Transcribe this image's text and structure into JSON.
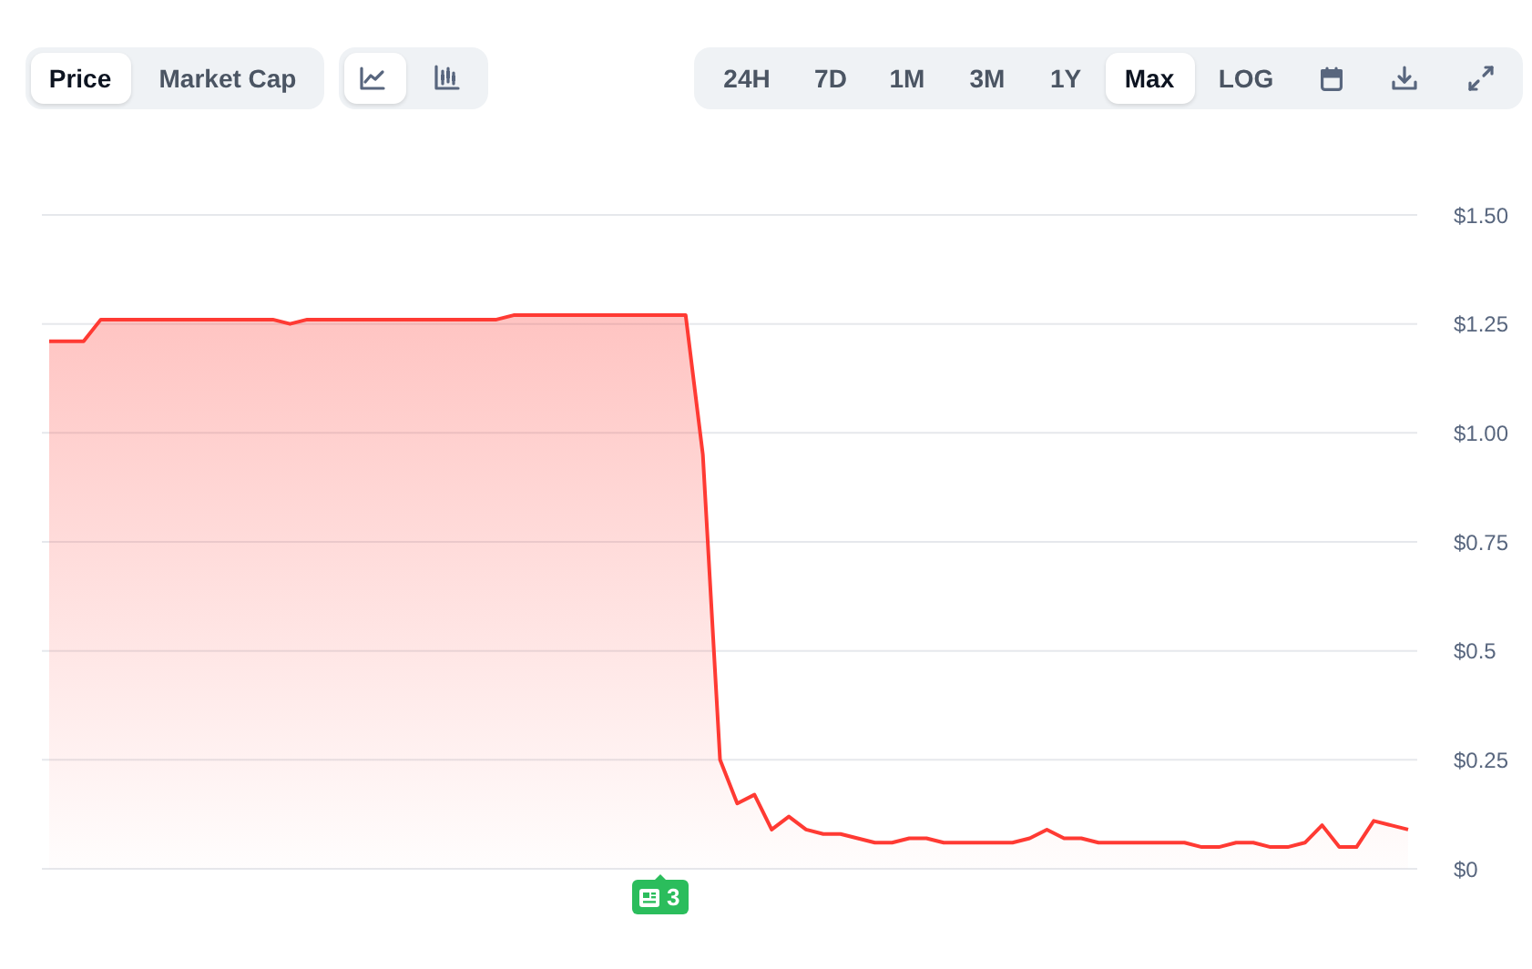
{
  "chart_data": {
    "type": "area",
    "categories": [
      null,
      null,
      null,
      null,
      null,
      null,
      null,
      null,
      null,
      null,
      null,
      null,
      null,
      null,
      null,
      null,
      null,
      null,
      null,
      null,
      null,
      null,
      null,
      null,
      null,
      null,
      null,
      null,
      null,
      null,
      null,
      null,
      null,
      null,
      null,
      null,
      null,
      null,
      null,
      null,
      null,
      null,
      null,
      null,
      null,
      null,
      null,
      null,
      null,
      null,
      null,
      null,
      null,
      null,
      null,
      null,
      null,
      null,
      null,
      null,
      null,
      null,
      null,
      null,
      null,
      null,
      null,
      null,
      null,
      null,
      null,
      null,
      null,
      null,
      null,
      null,
      null,
      null,
      null,
      null
    ],
    "values": [
      1.21,
      1.21,
      1.21,
      1.26,
      1.26,
      1.26,
      1.26,
      1.26,
      1.26,
      1.26,
      1.26,
      1.26,
      1.26,
      1.26,
      1.25,
      1.26,
      1.26,
      1.26,
      1.26,
      1.26,
      1.26,
      1.26,
      1.26,
      1.26,
      1.26,
      1.26,
      1.26,
      1.27,
      1.27,
      1.27,
      1.27,
      1.27,
      1.27,
      1.27,
      1.27,
      1.27,
      1.27,
      1.27,
      0.95,
      0.25,
      0.15,
      0.17,
      0.09,
      0.12,
      0.09,
      0.08,
      0.08,
      0.07,
      0.06,
      0.06,
      0.07,
      0.07,
      0.06,
      0.06,
      0.06,
      0.06,
      0.06,
      0.07,
      0.09,
      0.07,
      0.07,
      0.06,
      0.06,
      0.06,
      0.06,
      0.06,
      0.06,
      0.05,
      0.05,
      0.06,
      0.06,
      0.05,
      0.05,
      0.06,
      0.1,
      0.05,
      0.05,
      0.11,
      0.1,
      0.09
    ],
    "color": "#ff3a33",
    "ylim": [
      0,
      1.5
    ],
    "yticks": [
      {
        "value": 0,
        "label": "$0"
      },
      {
        "value": 0.25,
        "label": "$0.25"
      },
      {
        "value": 0.5,
        "label": "$0.5"
      },
      {
        "value": 0.75,
        "label": "$0.75"
      },
      {
        "value": 1,
        "label": "$1.00"
      },
      {
        "value": 1.25,
        "label": "$1.25"
      },
      {
        "value": 1.5,
        "label": "$1.50"
      }
    ],
    "grid": "y",
    "tick_labels": "y",
    "annotations": [
      "Price",
      "Market Cap",
      "24H",
      "7D",
      "1M",
      "3M",
      "1Y",
      "Max",
      "LOG",
      "3"
    ]
  }
}
